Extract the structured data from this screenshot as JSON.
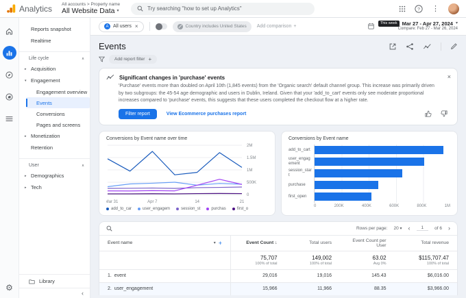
{
  "icons": {
    "dropdown": "▾",
    "close": "×",
    "plus": "+",
    "chevron_left": "‹",
    "chevron_right": "›",
    "kebab": "⋮",
    "gear": "⚙",
    "sort_desc": "↓",
    "section_collapse": "∧",
    "expand": "▸",
    "expand_open": "▾",
    "collapse_nav": "‹"
  },
  "header": {
    "product": "Analytics",
    "breadcrumb": "All accounts > Property name",
    "property": "All Website Data",
    "search_placeholder": "Try searching \"how to set up Analytics\""
  },
  "comparison_bar": {
    "all_users_chip": "All users",
    "country_chip": "Country includes United States",
    "add_comparison": "Add comparison",
    "date_badge": "This week",
    "date_range": "Mar 27 - Apr 27, 2024",
    "compare_range": "Compare: Feb 27 - Mar 26, 2024"
  },
  "sidebar": {
    "items": [
      {
        "label": "Reports snapshot"
      },
      {
        "label": "Realtime"
      },
      {
        "label": "Life cycle"
      },
      {
        "label": "Acquisition"
      },
      {
        "label": "Engagement"
      },
      {
        "label": "Engagement overview"
      },
      {
        "label": "Events"
      },
      {
        "label": "Conversions"
      },
      {
        "label": "Pages and screens"
      },
      {
        "label": "Monetization"
      },
      {
        "label": "Retention"
      },
      {
        "label": "User"
      },
      {
        "label": "Demographics"
      },
      {
        "label": "Tech"
      }
    ],
    "library_label": "Library"
  },
  "page": {
    "title": "Events",
    "filter_chip": "Add report filter"
  },
  "insight": {
    "title": "Significant changes in 'purchase' events",
    "body": "'Purchase' events more than doubled on April 10th (1,845 events) from the 'Organic search' default channel group. This increase was primarily driven by two subgroups: the 45-54 age demographic and users in Dublin, Ireland. Given that your 'add_to_cart' events only see moderate proportional increases compared to 'purchase' events, this suggests that these users completed the checkout flow at a higher rate.",
    "filter_button": "Filter report",
    "link": "View Ecommerce purchases report"
  },
  "chart_data": [
    {
      "type": "line",
      "title": "Conversions by Event name over time",
      "n_points": 7,
      "x_tick_labels": [
        "Mar 31",
        "Apr 7",
        "14",
        "21"
      ],
      "x_tick_positions": [
        0,
        2,
        4,
        6
      ],
      "ylim": [
        0,
        2000000
      ],
      "y_ticks": [
        {
          "v": 0,
          "label": "0"
        },
        {
          "v": 500000,
          "label": "500K"
        },
        {
          "v": 1000000,
          "label": "1M"
        },
        {
          "v": 1500000,
          "label": "1.5M"
        },
        {
          "v": 2000000,
          "label": "2M"
        }
      ],
      "legend_position": "bottom",
      "grid": true,
      "series": [
        {
          "name": "add_to_car",
          "color": "#185abc",
          "values": [
            1450000,
            950000,
            1750000,
            800000,
            900000,
            1700000,
            1100000
          ]
        },
        {
          "name": "user_engagem",
          "color": "#669df6",
          "values": [
            320000,
            430000,
            460000,
            500000,
            380000,
            450000,
            420000
          ]
        },
        {
          "name": "session_st",
          "color": "#7b61c9",
          "values": [
            250000,
            255000,
            265000,
            250000,
            280000,
            290000,
            305000
          ]
        },
        {
          "name": "purchas",
          "color": "#a142f4",
          "values": [
            150000,
            145000,
            160000,
            150000,
            380000,
            620000,
            410000
          ]
        },
        {
          "name": "first_o",
          "color": "#4b0f82",
          "values": [
            30000,
            30000,
            35000,
            30000,
            40000,
            45000,
            40000
          ]
        }
      ]
    },
    {
      "type": "bar",
      "title": "Conversions by Event name",
      "orientation": "horizontal",
      "categories": [
        "add_to_cart",
        "user_engagement",
        "session_start",
        "purchase",
        "first_open"
      ],
      "values": [
        950000,
        810000,
        645000,
        470000,
        420000
      ],
      "x_ticks": [
        "0",
        "200K",
        "400K",
        "600K",
        "800K",
        "1M"
      ],
      "xlim": [
        0,
        1000000
      ],
      "bar_color": "#1a73e8"
    }
  ],
  "table": {
    "rows_per_page_label": "Rows per page:",
    "rows_per_page_value": "20",
    "page_number": "1",
    "page_of": "of 6",
    "columns": [
      "Event name",
      "Event Count",
      "Total users",
      "Event Count per User",
      "Total revenue"
    ],
    "totals": {
      "event_count": "75,707",
      "event_count_sub": "100% of total",
      "total_users": "149,002",
      "total_users_sub": "100% of total",
      "count_per_user": "63.02",
      "count_per_user_sub": "Avg 0%",
      "revenue": "$115,707.47",
      "revenue_sub": "100% of total"
    },
    "rows": [
      {
        "rank": "1.",
        "name": "event",
        "event_count": "29,016",
        "total_users": "19,016",
        "count_per_user": "145.43",
        "revenue": "$6,016.00"
      },
      {
        "rank": "2.",
        "name": "user_engagement",
        "event_count": "15,966",
        "total_users": "11,966",
        "count_per_user": "88.35",
        "revenue": "$3,966.00"
      }
    ]
  }
}
